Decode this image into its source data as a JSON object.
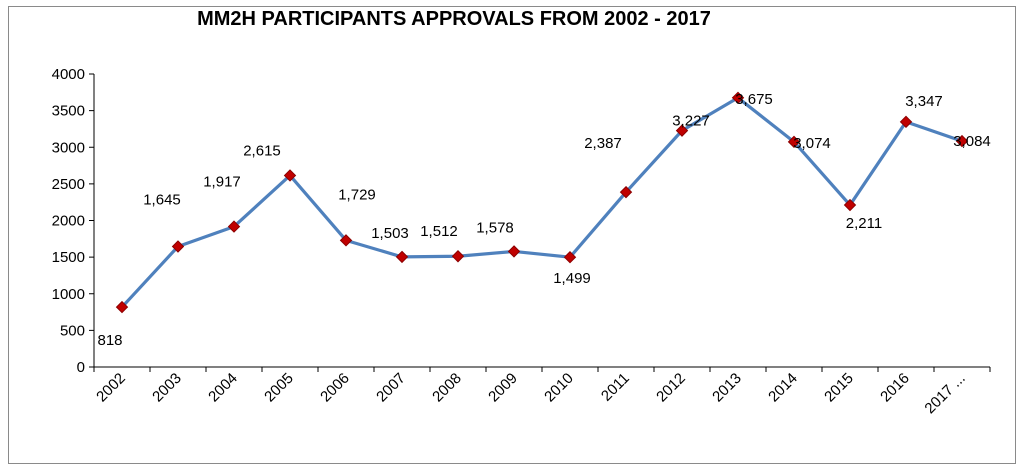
{
  "chart_data": {
    "type": "line",
    "title": "MM2H PARTICIPANTS APPROVALS FROM 2002 - 2017",
    "xlabel": "",
    "ylabel": "",
    "categories": [
      "2002",
      "2003",
      "2004",
      "2005",
      "2006",
      "2007",
      "2008",
      "2009",
      "2010",
      "2011",
      "2012",
      "2013",
      "2014",
      "2015",
      "2016",
      "2017 ..."
    ],
    "series": [
      {
        "values": [
          818,
          1645,
          1917,
          2615,
          1729,
          1503,
          1512,
          1578,
          1499,
          2387,
          3227,
          3675,
          3074,
          2211,
          3347,
          3084
        ],
        "data_labels": [
          "818",
          "1,645",
          "1,917",
          "2,615",
          "1,729",
          "1,503",
          "1,512",
          "1,578",
          "1,499",
          "2,387",
          "3,227",
          "3,675",
          "3,074",
          "2,211",
          "3,347",
          "3,084"
        ]
      }
    ],
    "ylim": [
      0,
      4000
    ],
    "yticks": [
      0,
      500,
      1000,
      1500,
      2000,
      2500,
      3000,
      3500,
      4000
    ],
    "grid": false,
    "legend": "none",
    "colors": {
      "line": "#4f81bd",
      "marker_fill": "#c00000",
      "marker_stroke": "#8b0000",
      "axis": "#000000"
    }
  }
}
